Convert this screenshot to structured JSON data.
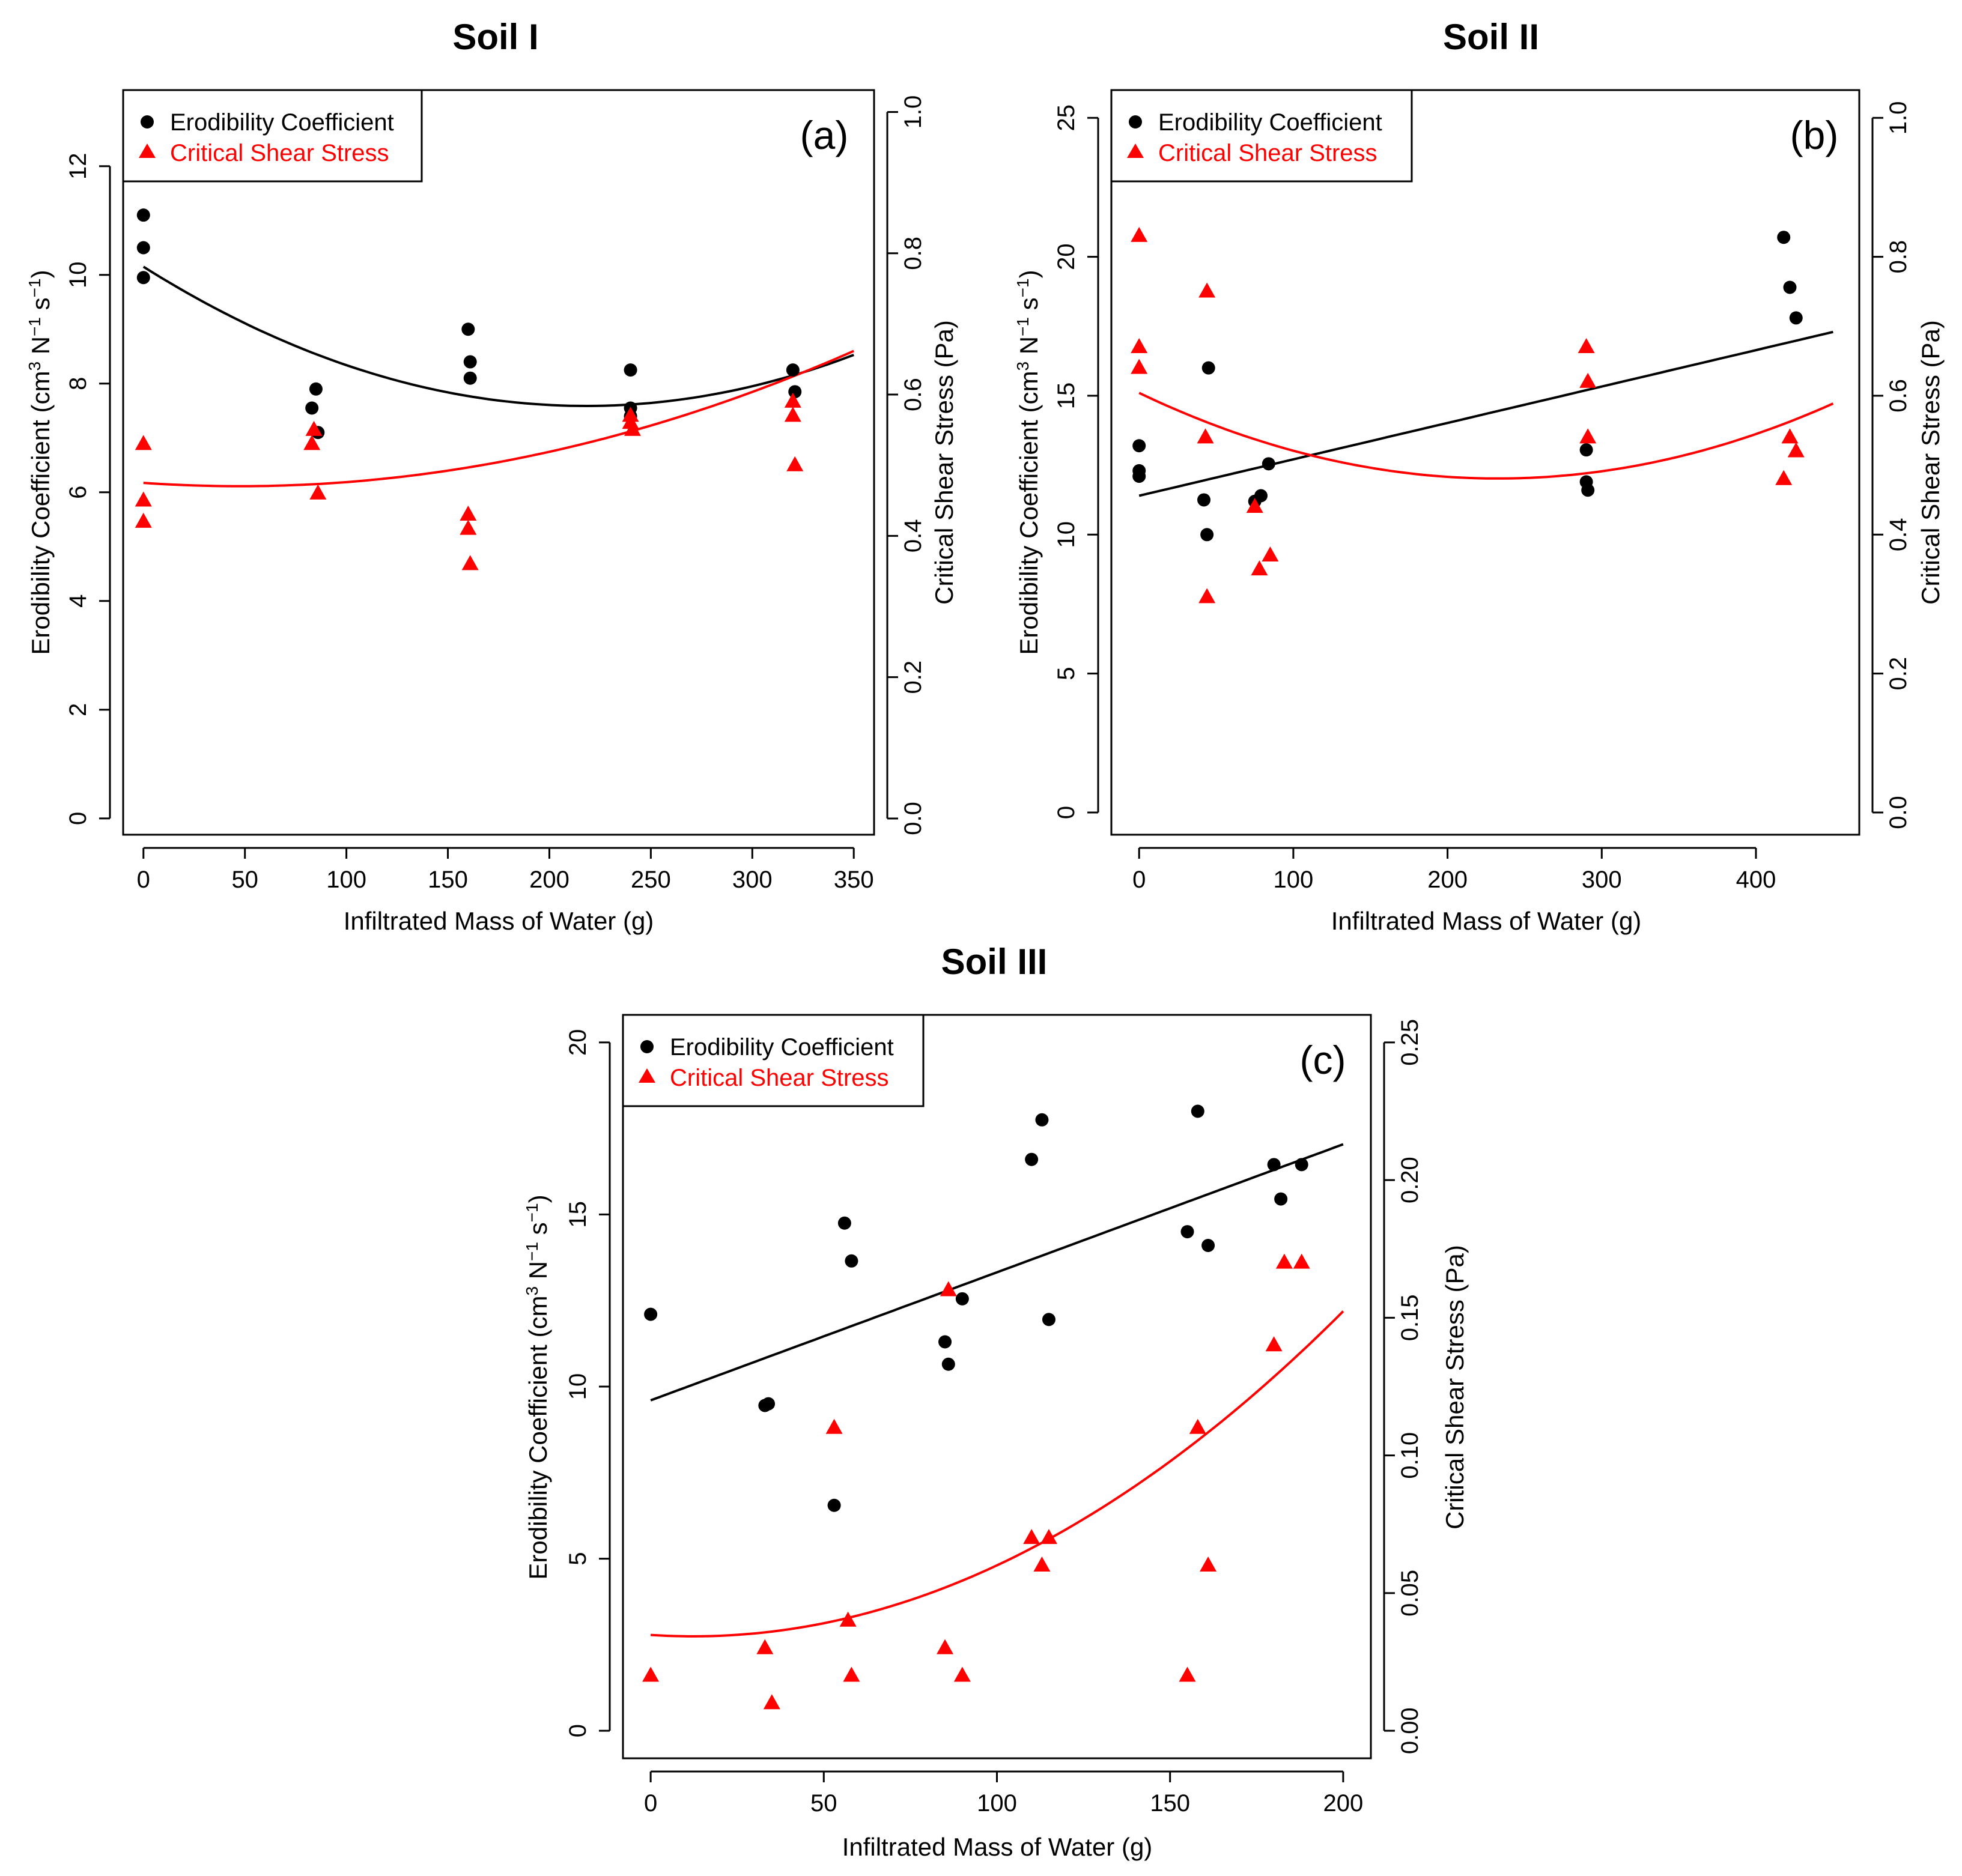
{
  "chart_data": [
    {
      "type": "scatter",
      "title": "Soil I",
      "panel_label": "(a)",
      "xlabel": "Infiltrated Mass of Water (g)",
      "ylabel_left": "Erodibility Coefficient (cm",
      "ylabel_left_sup1": "3",
      "ylabel_left_mid": " N",
      "ylabel_left_sup2": "−1",
      "ylabel_left_mid2": " s",
      "ylabel_left_sup3": "−1",
      "ylabel_left_end": ")",
      "ylabel_right": "Critical Shear Stress (Pa)",
      "xlim": [
        -10,
        360
      ],
      "ylim_left": [
        -0.3,
        13.4
      ],
      "ylim_right": [
        -0.023,
        1.031
      ],
      "xticks": [
        0,
        50,
        100,
        150,
        200,
        250,
        300,
        350
      ],
      "yticks_left": [
        0,
        2,
        4,
        6,
        8,
        10,
        12
      ],
      "yticks_right": [
        0.0,
        0.2,
        0.4,
        0.6,
        0.8,
        1.0
      ],
      "yticks_right_labels": [
        "0.0",
        "0.2",
        "0.4",
        "0.6",
        "0.8",
        "1.0"
      ],
      "legend": [
        "Erodibility Coefficient",
        "Critical Shear Stress"
      ],
      "legend_position": "top-left",
      "series": [
        {
          "name": "Erodibility Coefficient",
          "axis": "left",
          "marker": "circle",
          "color": "#000000",
          "x": [
            0,
            0,
            0,
            83,
            85,
            86,
            160,
            161,
            161,
            240,
            240,
            240,
            320,
            321
          ],
          "y": [
            11.1,
            10.5,
            9.95,
            7.55,
            7.9,
            7.1,
            9.0,
            8.4,
            8.1,
            8.25,
            7.55,
            7.4,
            8.25,
            7.85
          ]
        },
        {
          "name": "Critical Shear Stress",
          "axis": "right",
          "marker": "triangle",
          "color": "#ff0000",
          "x": [
            0,
            0,
            0,
            83,
            84,
            86,
            160,
            160,
            161,
            240,
            240,
            241,
            320,
            320,
            321
          ],
          "y": [
            0.53,
            0.45,
            0.42,
            0.53,
            0.55,
            0.46,
            0.43,
            0.41,
            0.36,
            0.57,
            0.56,
            0.55,
            0.59,
            0.57,
            0.5
          ]
        }
      ],
      "fits": [
        {
          "axis": "left",
          "color": "#000000",
          "kind": "quadratic",
          "x_range": [
            0,
            350
          ],
          "coef": [
            10.15,
            -0.0235,
            5.39e-05
          ]
        },
        {
          "axis": "right",
          "color": "#ff0000",
          "kind": "quadratic",
          "x_range": [
            0,
            350
          ],
          "coef": [
            0.475,
            -0.000198,
            2.09e-06
          ]
        }
      ]
    },
    {
      "type": "scatter",
      "title": "Soil II",
      "panel_label": "(b)",
      "xlabel": "Infiltrated Mass of Water (g)",
      "ylabel_left": "Erodibility Coefficient (cm",
      "ylabel_left_sup1": "3",
      "ylabel_left_mid": " N",
      "ylabel_left_sup2": "−1",
      "ylabel_left_mid2": " s",
      "ylabel_left_sup3": "−1",
      "ylabel_left_end": ")",
      "ylabel_right": "Critical Shear Stress (Pa)",
      "xlim": [
        -18,
        467
      ],
      "ylim_left": [
        -0.8,
        26.0
      ],
      "ylim_right": [
        -0.032,
        1.04
      ],
      "xticks": [
        0,
        100,
        200,
        300,
        400
      ],
      "yticks_left": [
        0,
        5,
        10,
        15,
        20,
        25
      ],
      "yticks_right": [
        0.0,
        0.2,
        0.4,
        0.6,
        0.8,
        1.0
      ],
      "yticks_right_labels": [
        "0.0",
        "0.2",
        "0.4",
        "0.6",
        "0.8",
        "1.0"
      ],
      "legend": [
        "Erodibility Coefficient",
        "Critical Shear Stress"
      ],
      "legend_position": "top-left",
      "series": [
        {
          "name": "Erodibility Coefficient",
          "axis": "left",
          "marker": "circle",
          "color": "#000000",
          "x": [
            0,
            0,
            0,
            42,
            44,
            45,
            75,
            79,
            84,
            290,
            290,
            291,
            418,
            422,
            426
          ],
          "y": [
            13.2,
            12.3,
            12.1,
            11.25,
            10.0,
            16.0,
            11.2,
            11.4,
            12.55,
            13.05,
            11.9,
            11.6,
            20.7,
            18.9,
            17.8
          ]
        },
        {
          "name": "Critical Shear Stress",
          "axis": "right",
          "marker": "triangle",
          "color": "#ff0000",
          "x": [
            0,
            0,
            0,
            43,
            44,
            44,
            75,
            78,
            85,
            290,
            291,
            291,
            418,
            422,
            426
          ],
          "y": [
            0.83,
            0.67,
            0.64,
            0.54,
            0.75,
            0.31,
            0.44,
            0.35,
            0.37,
            0.67,
            0.62,
            0.54,
            0.48,
            0.54,
            0.52
          ]
        }
      ],
      "fits": [
        {
          "axis": "left",
          "color": "#000000",
          "kind": "quadratic",
          "x_range": [
            0,
            450
          ],
          "coef": [
            11.4,
            0.0131,
            0.0
          ]
        },
        {
          "axis": "right",
          "color": "#ff0000",
          "kind": "quadratic",
          "x_range": [
            0,
            450
          ],
          "coef": [
            0.604,
            -0.00106,
            2.28e-06
          ]
        }
      ]
    },
    {
      "type": "scatter",
      "title": "Soil III",
      "panel_label": "(c)",
      "xlabel": "Infiltrated Mass of Water (g)",
      "ylabel_left": "Erodibility Coefficient (cm",
      "ylabel_left_sup1": "3",
      "ylabel_left_mid": " N",
      "ylabel_left_sup2": "−1",
      "ylabel_left_mid2": " s",
      "ylabel_left_sup3": "−1",
      "ylabel_left_end": ")",
      "ylabel_right": "Critical Shear Stress (Pa)",
      "xlim": [
        -8,
        208
      ],
      "ylim_left": [
        -0.8,
        20.8
      ],
      "ylim_right": [
        -0.01,
        0.26
      ],
      "xticks": [
        0,
        50,
        100,
        150,
        200
      ],
      "yticks_left": [
        0,
        5,
        10,
        15,
        20
      ],
      "yticks_right": [
        0.0,
        0.05,
        0.1,
        0.15,
        0.2,
        0.25
      ],
      "yticks_right_labels": [
        "0.00",
        "0.05",
        "0.10",
        "0.15",
        "0.20",
        "0.25"
      ],
      "legend": [
        "Erodibility Coefficient",
        "Critical Shear Stress"
      ],
      "legend_position": "top-left",
      "series": [
        {
          "name": "Erodibility Coefficient",
          "axis": "left",
          "marker": "circle",
          "color": "#000000",
          "x": [
            0,
            33,
            34,
            53,
            56,
            58,
            85,
            86,
            90,
            110,
            113,
            115,
            155,
            158,
            161,
            180,
            182,
            188
          ],
          "y": [
            12.1,
            9.45,
            9.5,
            6.55,
            14.75,
            13.65,
            11.3,
            10.65,
            12.55,
            16.6,
            17.75,
            11.95,
            14.5,
            18.0,
            14.1,
            16.45,
            15.45,
            16.45
          ]
        },
        {
          "name": "Critical Shear Stress",
          "axis": "right",
          "marker": "triangle",
          "color": "#ff0000",
          "x": [
            0,
            33,
            35,
            53,
            57,
            58,
            85,
            86,
            90,
            110,
            113,
            115,
            155,
            158,
            161,
            180,
            183,
            188
          ],
          "y": [
            0.02,
            0.03,
            0.01,
            0.11,
            0.04,
            0.02,
            0.03,
            0.16,
            0.02,
            0.07,
            0.06,
            0.07,
            0.02,
            0.11,
            0.06,
            0.14,
            0.17,
            0.17
          ]
        }
      ],
      "fits": [
        {
          "axis": "left",
          "color": "#000000",
          "kind": "quadratic",
          "x_range": [
            0,
            200
          ],
          "coef": [
            9.6,
            0.0372,
            0.0
          ]
        },
        {
          "axis": "right",
          "color": "#ff0000",
          "kind": "quadratic",
          "x_range": [
            0,
            200
          ],
          "coef": [
            0.0348,
            -8.23e-05,
            3.35e-06
          ]
        }
      ]
    }
  ]
}
